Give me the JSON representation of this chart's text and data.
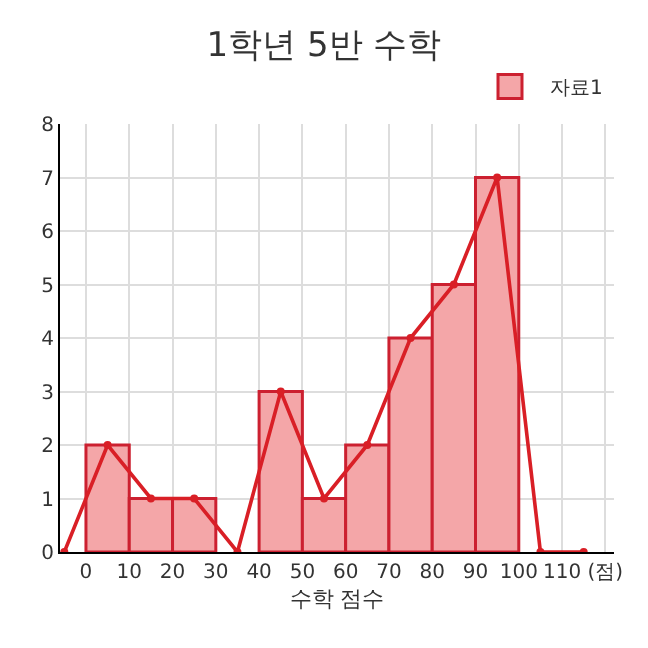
{
  "chart_data": {
    "type": "histogram",
    "title": "1학년 5반 수학",
    "xlabel": "수학 점수",
    "bins": [
      0,
      10,
      20,
      30,
      40,
      50,
      60,
      70,
      80,
      90,
      100
    ],
    "series": [
      {
        "name": "자료1",
        "color": "#f4a6a8",
        "values": [
          2,
          1,
          1,
          0,
          3,
          1,
          2,
          4,
          5,
          7
        ]
      },
      {
        "type": "line",
        "color": "#d91f26",
        "marker": "circle",
        "x": [
          -5,
          5,
          15,
          25,
          35,
          45,
          55,
          65,
          75,
          85,
          95,
          105,
          115
        ],
        "values": [
          0,
          2,
          1,
          1,
          0,
          3,
          1,
          2,
          4,
          5,
          7,
          0,
          0
        ]
      }
    ],
    "xlim": [
      -6,
      122
    ],
    "xticks": [
      0,
      10,
      20,
      30,
      40,
      50,
      60,
      70,
      80,
      90,
      100,
      110,
      {
        "value": 120,
        "label": "(점)"
      }
    ],
    "ylim": [
      0,
      8
    ],
    "yticks": [
      0,
      1,
      2,
      3,
      4,
      5,
      6,
      7,
      8
    ],
    "grid": true,
    "legend": "top right"
  }
}
